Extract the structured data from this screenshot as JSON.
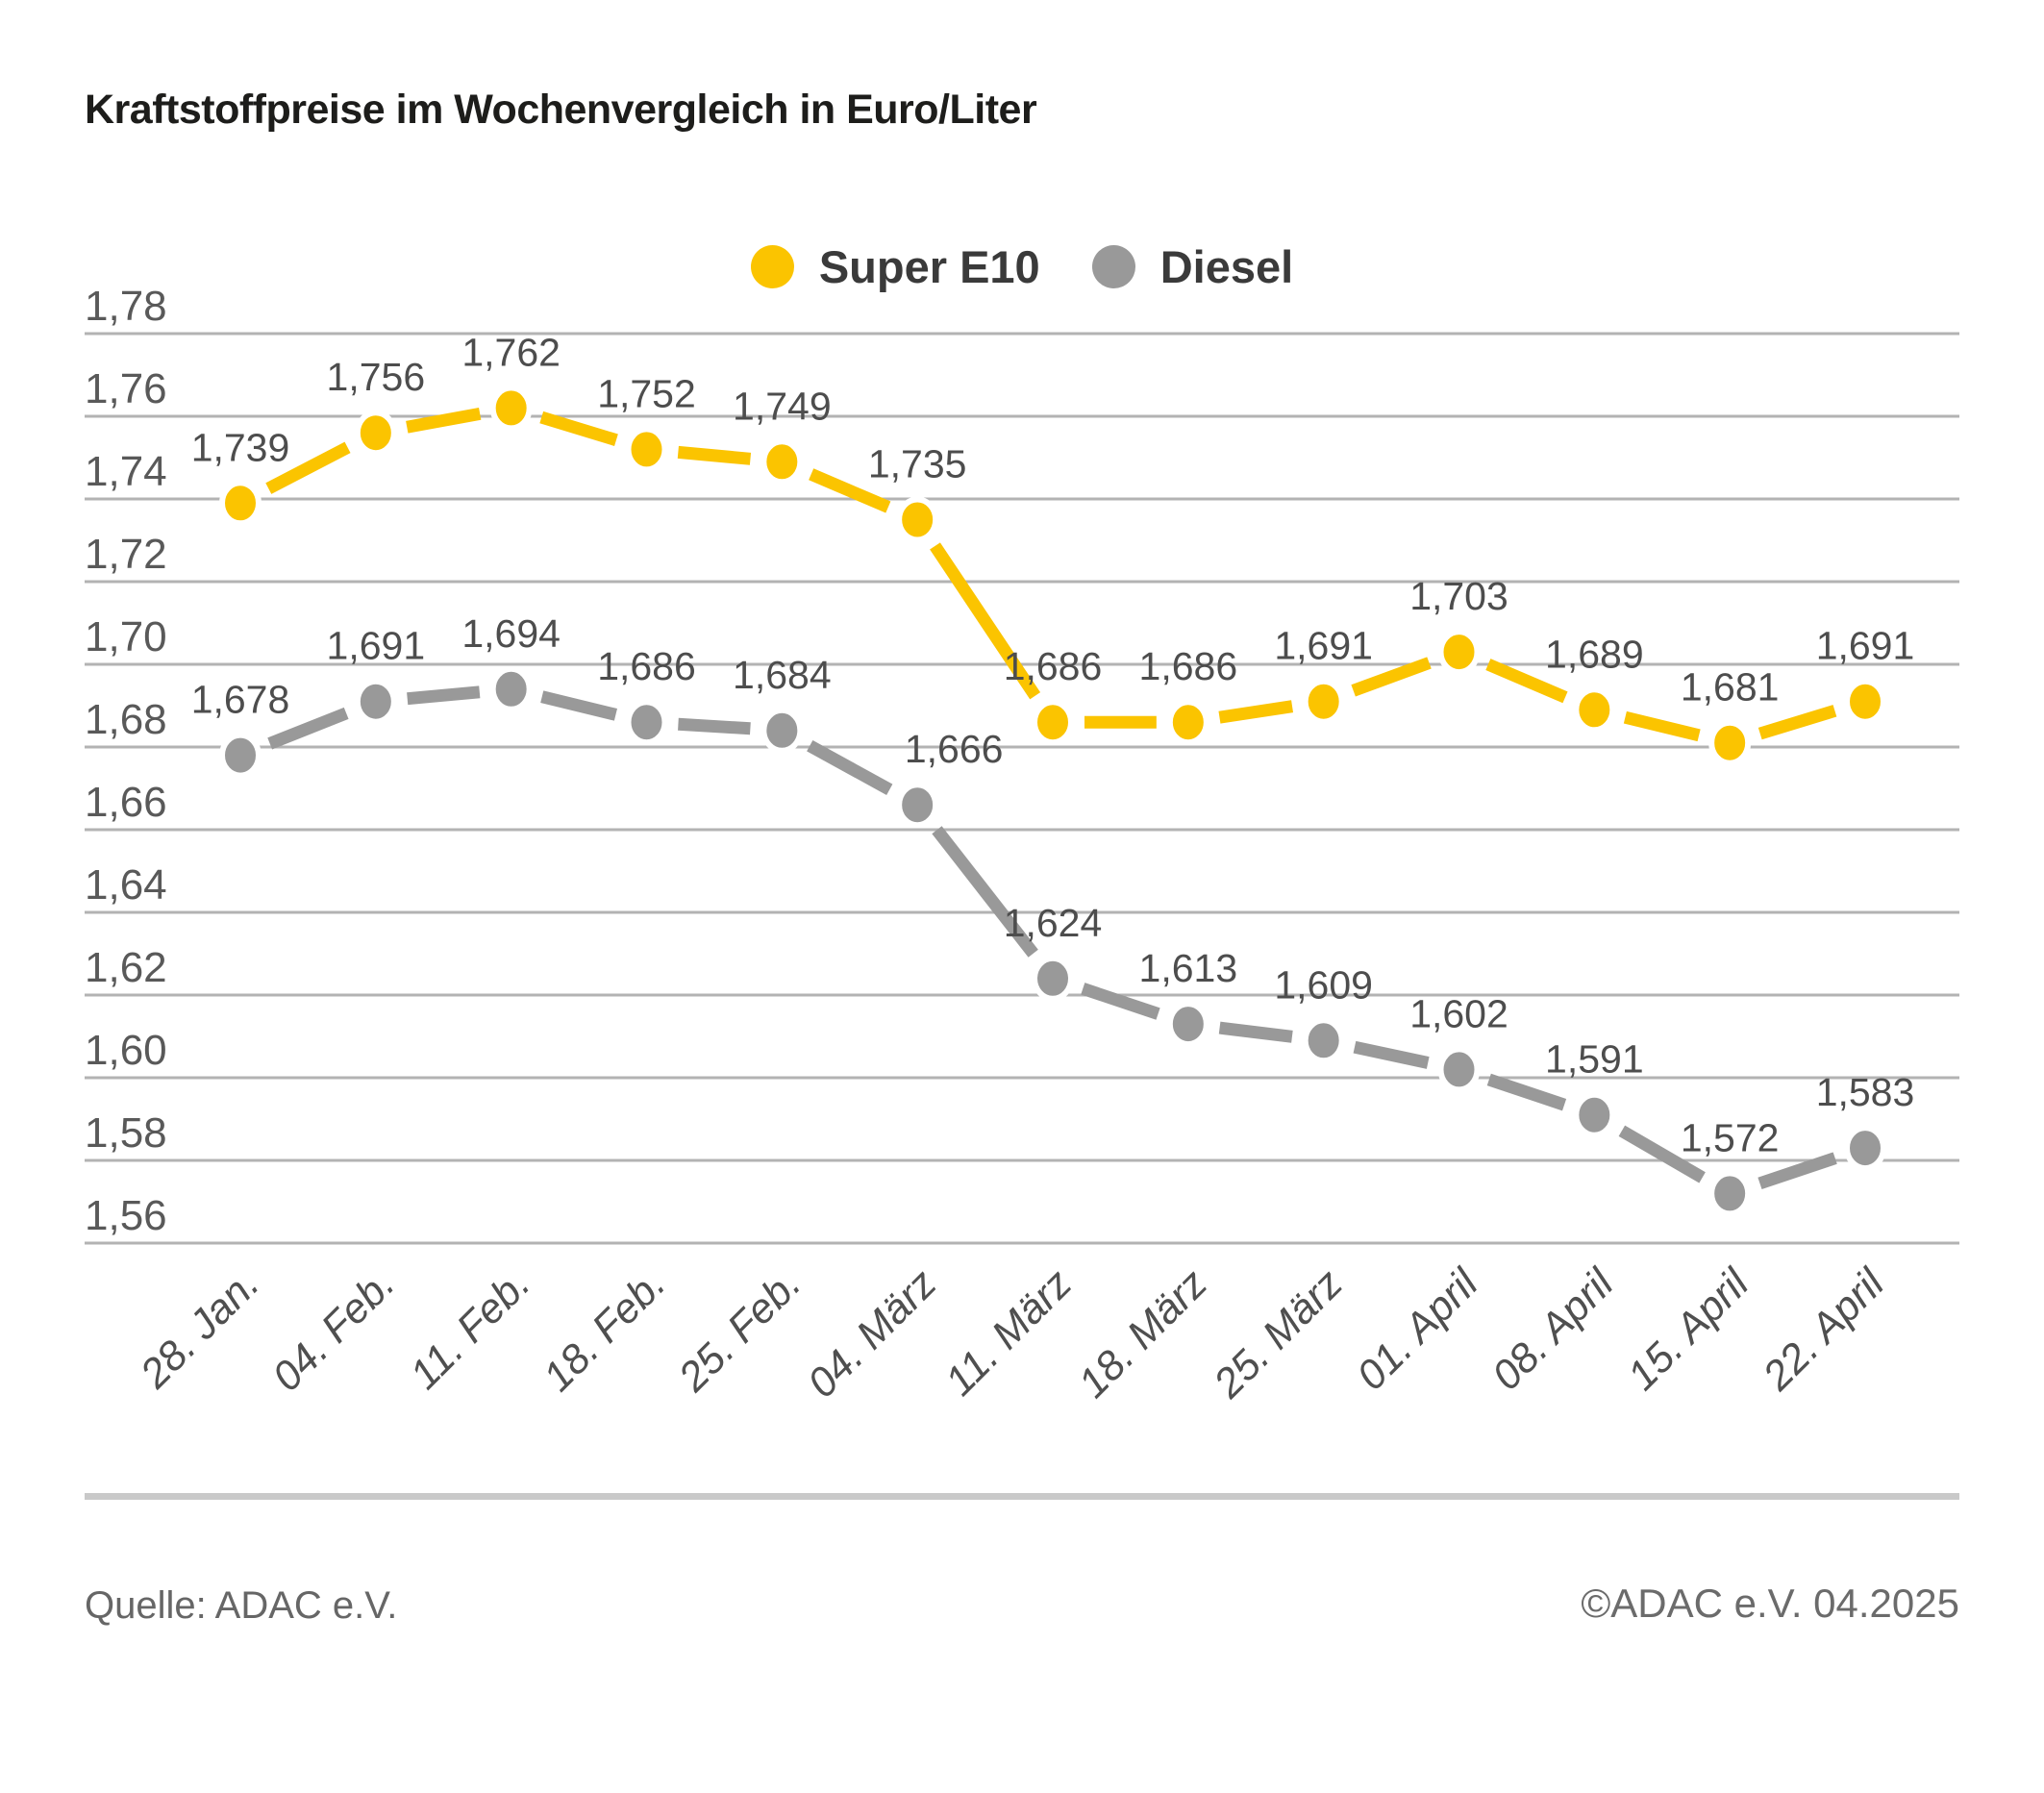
{
  "title": "Kraftstoffpreise im Wochenvergleich in Euro/Liter",
  "legend": {
    "items": [
      {
        "label": "Super E10",
        "color": "#FBC400"
      },
      {
        "label": "Diesel",
        "color": "#999999"
      }
    ]
  },
  "footer": {
    "source": "Quelle: ADAC e.V.",
    "copyright": "©ADAC e.V. 04.2025"
  },
  "chart_data": {
    "type": "line",
    "title": "Kraftstoffpreise im Wochenvergleich in Euro/Liter",
    "categories": [
      "28. Jan.",
      "04. Feb.",
      "11. Feb.",
      "18. Feb.",
      "25. Feb.",
      "04. März",
      "11. März",
      "18. März",
      "25. März",
      "01. April",
      "08. April",
      "15. April",
      "22. April"
    ],
    "series": [
      {
        "name": "Super E10",
        "color": "#FBC400",
        "values": [
          1.739,
          1.756,
          1.762,
          1.752,
          1.749,
          1.735,
          1.686,
          1.686,
          1.691,
          1.703,
          1.689,
          1.681,
          1.691
        ]
      },
      {
        "name": "Diesel",
        "color": "#999999",
        "values": [
          1.678,
          1.691,
          1.694,
          1.686,
          1.684,
          1.666,
          1.624,
          1.613,
          1.609,
          1.602,
          1.591,
          1.572,
          1.583
        ]
      }
    ],
    "xlabel": "",
    "ylabel": "Euro/Liter",
    "y_ticks": [
      1.78,
      1.76,
      1.74,
      1.72,
      1.7,
      1.68,
      1.66,
      1.64,
      1.62,
      1.6,
      1.58,
      1.56
    ],
    "ylim": [
      1.56,
      1.78
    ],
    "grid": true,
    "legend_position": "top-center",
    "decimal_separator": ",",
    "data_labels": true
  }
}
